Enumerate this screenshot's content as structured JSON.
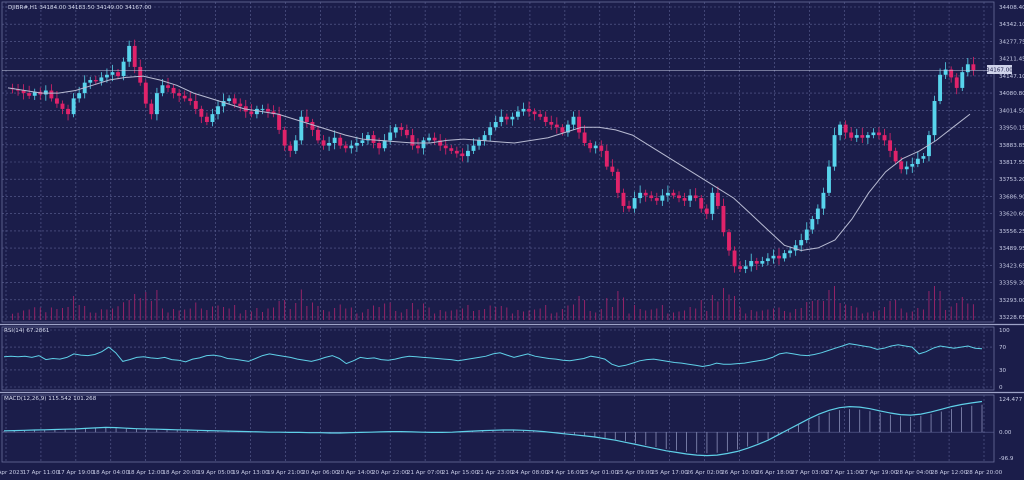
{
  "chart_data": [
    {
      "type": "candlestick",
      "header": "DJIBR#,H1  34184.00 34183.50 34149.00 34167.00",
      "ylim": [
        33226.65,
        34408.4
      ],
      "y_ticks": [
        "34408.40",
        "34342.10",
        "34277.75",
        "34211.45",
        "34147.10",
        "34080.80",
        "34014.50",
        "33950.15",
        "33883.85",
        "33817.55",
        "33753.20",
        "33686.90",
        "33620.60",
        "33556.25",
        "33489.95",
        "33423.65",
        "33359.30",
        "33293.00",
        "33228.65"
      ],
      "price_label": "34167.00",
      "x_ticks": [
        "17 Apr 2023",
        "17 Apr 11:00",
        "17 Apr 19:00",
        "18 Apr 04:00",
        "18 Apr 12:00",
        "18 Apr 20:00",
        "19 Apr 05:00",
        "19 Apr 13:00",
        "19 Apr 21:00",
        "20 Apr 06:00",
        "20 Apr 14:00",
        "20 Apr 22:00",
        "21 Apr 07:00",
        "21 Apr 15:00",
        "21 Apr 23:00",
        "24 Apr 08:00",
        "24 Apr 16:00",
        "25 Apr 01:00",
        "25 Apr 09:00",
        "25 Apr 17:00",
        "26 Apr 02:00",
        "26 Apr 10:00",
        "26 Apr 18:00",
        "27 Apr 03:00",
        "27 Apr 11:00",
        "27 Apr 19:00",
        "28 Apr 04:00",
        "28 Apr 12:00",
        "28 Apr 20:00"
      ],
      "close_path": [
        34100,
        34095,
        34090,
        34080,
        34070,
        34085,
        34075,
        34090,
        34060,
        34040,
        34020,
        34000,
        34060,
        34080,
        34120,
        34130,
        34125,
        34140,
        34150,
        34160,
        34145,
        34200,
        34260,
        34180,
        34120,
        34040,
        34000,
        34080,
        34110,
        34100,
        34080,
        34070,
        34060,
        34050,
        34020,
        33990,
        33970,
        34000,
        34030,
        34050,
        34060,
        34040,
        34030,
        34010,
        34000,
        34020,
        34020,
        34010,
        34000,
        33940,
        33880,
        33860,
        33900,
        33990,
        33970,
        33940,
        33900,
        33880,
        33890,
        33910,
        33880,
        33870,
        33880,
        33890,
        33900,
        33920,
        33890,
        33870,
        33900,
        33930,
        33950,
        33940,
        33920,
        33880,
        33870,
        33900,
        33910,
        33900,
        33880,
        33870,
        33860,
        33850,
        33840,
        33860,
        33880,
        33900,
        33920,
        33950,
        33970,
        33990,
        33980,
        33990,
        34010,
        34020,
        34010,
        34000,
        33990,
        33970,
        33960,
        33950,
        33930,
        33960,
        33990,
        33930,
        33890,
        33870,
        33880,
        33860,
        33800,
        33780,
        33700,
        33650,
        33640,
        33680,
        33700,
        33690,
        33680,
        33670,
        33690,
        33700,
        33690,
        33680,
        33670,
        33690,
        33680,
        33640,
        33620,
        33700,
        33650,
        33550,
        33480,
        33420,
        33410,
        33420,
        33440,
        33430,
        33440,
        33450,
        33460,
        33450,
        33470,
        33480,
        33500,
        33520,
        33560,
        33600,
        33640,
        33700,
        33800,
        33920,
        33960,
        33930,
        33910,
        33920,
        33910,
        33920,
        33930,
        33920,
        33900,
        33860,
        33820,
        33790,
        33800,
        33810,
        33830,
        33840,
        33920,
        34050,
        34150,
        34170,
        34140,
        34100,
        34160,
        34190,
        34167
      ],
      "ma_path": [
        34100,
        34090,
        34080,
        34080,
        34090,
        34110,
        34130,
        34140,
        34145,
        34130,
        34110,
        34080,
        34060,
        34040,
        34020,
        34010,
        34000,
        33980,
        33960,
        33940,
        33920,
        33905,
        33900,
        33895,
        33890,
        33890,
        33900,
        33905,
        33900,
        33895,
        33890,
        33900,
        33910,
        33930,
        33950,
        33950,
        33940,
        33920,
        33880,
        33840,
        33800,
        33760,
        33720,
        33680,
        33620,
        33560,
        33500,
        33480,
        33490,
        33520,
        33600,
        33700,
        33780,
        33830,
        33860,
        33900,
        33950,
        34000
      ]
    },
    {
      "type": "line",
      "header": "RSI(14) 67.2861",
      "ylim": [
        0,
        100
      ],
      "y_ticks": [
        "100",
        "70",
        "30",
        "0"
      ],
      "levels": [
        70,
        30
      ],
      "values": [
        53,
        54,
        53,
        54,
        52,
        55,
        48,
        50,
        49,
        52,
        58,
        56,
        55,
        57,
        62,
        70,
        60,
        45,
        48,
        52,
        53,
        51,
        50,
        52,
        48,
        47,
        44,
        49,
        51,
        55,
        56,
        54,
        50,
        49,
        47,
        45,
        50,
        55,
        58,
        56,
        54,
        52,
        49,
        47,
        45,
        48,
        52,
        55,
        50,
        41,
        46,
        52,
        50,
        51,
        48,
        47,
        49,
        52,
        54,
        53,
        52,
        51,
        50,
        49,
        48,
        46,
        48,
        50,
        52,
        54,
        58,
        60,
        56,
        52,
        55,
        58,
        54,
        52,
        50,
        49,
        47,
        46,
        48,
        50,
        54,
        52,
        49,
        40,
        36,
        38,
        42,
        46,
        48,
        49,
        47,
        45,
        43,
        42,
        40,
        38,
        36,
        38,
        42,
        40,
        40,
        41,
        42,
        44,
        46,
        48,
        52,
        58,
        60,
        58,
        56,
        55,
        57,
        60,
        64,
        68,
        72,
        76,
        74,
        72,
        70,
        66,
        68,
        72,
        74,
        72,
        70,
        58,
        62,
        68,
        72,
        70,
        68,
        70,
        72,
        68,
        67
      ]
    },
    {
      "type": "bar+line",
      "header": "MACD(12,26,9) 115.542 101.268",
      "ylim": [
        -96.9,
        124.477
      ],
      "y_ticks": [
        "124.477",
        "0.00",
        "-96.9"
      ],
      "signal": [
        5,
        6,
        7,
        8,
        9,
        10,
        11,
        12,
        14,
        16,
        18,
        17,
        15,
        13,
        12,
        11,
        10,
        9,
        8,
        7,
        6,
        5,
        4,
        3,
        2,
        1,
        0,
        0,
        -1,
        -1,
        -2,
        -2,
        -3,
        -3,
        -2,
        -1,
        0,
        1,
        2,
        2,
        1,
        0,
        -1,
        -1,
        0,
        2,
        4,
        6,
        7,
        8,
        8,
        7,
        5,
        2,
        -2,
        -6,
        -10,
        -14,
        -18,
        -24,
        -30,
        -38,
        -46,
        -54,
        -62,
        -70,
        -76,
        -82,
        -86,
        -88,
        -86,
        -80,
        -72,
        -60,
        -46,
        -30,
        -10,
        10,
        30,
        50,
        68,
        82,
        92,
        96,
        94,
        88,
        80,
        72,
        66,
        64,
        68,
        76,
        86,
        96,
        104,
        110,
        115
      ]
    }
  ]
}
